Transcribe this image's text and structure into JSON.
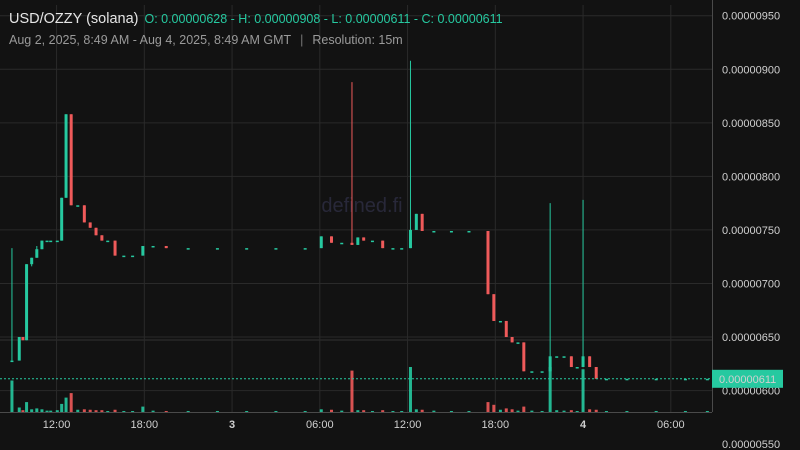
{
  "header": {
    "pair": "USD/OZZY (solana)",
    "ohlc": "O: 0.00000628 - H: 0.00000908 - L: 0.00000611 - C: 0.00000611",
    "range": "Aug 2, 2025, 8:49 AM - Aug 4, 2025, 8:49 AM GMT",
    "separator": "|",
    "resolution": "Resolution: 15m"
  },
  "watermark": "defined.fi",
  "colors": {
    "up": "#26c9a0",
    "down": "#ef5a5a",
    "background": "#121212",
    "grid": "#2a2a2a",
    "last_price_label_bg": "#26c9a0"
  },
  "chart_data": {
    "type": "candlestick",
    "title": "USD/OZZY (solana)",
    "resolution": "15m",
    "ylim": [
      5.8e-06,
      9.6e-06
    ],
    "y_ticks": [
      "0.00000550",
      "0.00000600",
      "0.00000650",
      "0.00000700",
      "0.00000750",
      "0.00000800",
      "0.00000850",
      "0.00000900",
      "0.00000950"
    ],
    "x_ticks": [
      {
        "label": "12:00",
        "hour": 12,
        "bold": false
      },
      {
        "label": "18:00",
        "hour": 18,
        "bold": false
      },
      {
        "label": "3",
        "hour": 24,
        "bold": true
      },
      {
        "label": "06:00",
        "hour": 30,
        "bold": false
      },
      {
        "label": "12:00",
        "hour": 36,
        "bold": false
      },
      {
        "label": "18:00",
        "hour": 42,
        "bold": false
      },
      {
        "label": "4",
        "hour": 48,
        "bold": true
      },
      {
        "label": "06:00",
        "hour": 54,
        "bold": false
      }
    ],
    "xlim_hours": [
      8.817,
      56.817
    ],
    "last_price": "0.00000611",
    "candles": [
      {
        "t": 8.95,
        "o": 6.28e-06,
        "h": 7.33e-06,
        "l": 6.28e-06,
        "c": 6.28e-06,
        "v": 0.7
      },
      {
        "t": 9.45,
        "o": 6.28e-06,
        "h": 6.5e-06,
        "l": 6.28e-06,
        "c": 6.5e-06,
        "v": 0.1
      },
      {
        "t": 9.7,
        "o": 6.5e-06,
        "h": 6.5e-06,
        "l": 6.47e-06,
        "c": 6.47e-06,
        "v": 0.04
      },
      {
        "t": 9.95,
        "o": 6.47e-06,
        "h": 7.18e-06,
        "l": 6.47e-06,
        "c": 7.18e-06,
        "v": 0.22
      },
      {
        "t": 10.3,
        "o": 7.18e-06,
        "h": 7.24e-06,
        "l": 7.16e-06,
        "c": 7.24e-06,
        "v": 0.06
      },
      {
        "t": 10.65,
        "o": 7.24e-06,
        "h": 7.35e-06,
        "l": 7.24e-06,
        "c": 7.32e-06,
        "v": 0.08
      },
      {
        "t": 11.0,
        "o": 7.32e-06,
        "h": 7.4e-06,
        "l": 7.32e-06,
        "c": 7.4e-06,
        "v": 0.06
      },
      {
        "t": 11.35,
        "o": 7.4e-06,
        "h": 7.4e-06,
        "l": 7.4e-06,
        "c": 7.4e-06,
        "v": 0.03
      },
      {
        "t": 11.6,
        "o": 7.4e-06,
        "h": 7.4e-06,
        "l": 7.4e-06,
        "c": 7.4e-06,
        "v": 0.03
      },
      {
        "t": 12.05,
        "o": 7.4e-06,
        "h": 7.4e-06,
        "l": 7.4e-06,
        "c": 7.4e-06,
        "v": 0.04
      },
      {
        "t": 12.35,
        "o": 7.4e-06,
        "h": 7.8e-06,
        "l": 7.4e-06,
        "c": 7.8e-06,
        "v": 0.18
      },
      {
        "t": 12.65,
        "o": 7.8e-06,
        "h": 8.58e-06,
        "l": 7.8e-06,
        "c": 8.58e-06,
        "v": 0.32
      },
      {
        "t": 13.0,
        "o": 8.58e-06,
        "h": 8.58e-06,
        "l": 7.73e-06,
        "c": 7.73e-06,
        "v": 0.42
      },
      {
        "t": 13.45,
        "o": 7.73e-06,
        "h": 7.73e-06,
        "l": 7.73e-06,
        "c": 7.73e-06,
        "v": 0.05
      },
      {
        "t": 13.9,
        "o": 7.73e-06,
        "h": 7.73e-06,
        "l": 7.57e-06,
        "c": 7.57e-06,
        "v": 0.06
      },
      {
        "t": 14.3,
        "o": 7.57e-06,
        "h": 7.57e-06,
        "l": 7.52e-06,
        "c": 7.52e-06,
        "v": 0.05
      },
      {
        "t": 14.7,
        "o": 7.52e-06,
        "h": 7.52e-06,
        "l": 7.45e-06,
        "c": 7.45e-06,
        "v": 0.04
      },
      {
        "t": 15.1,
        "o": 7.45e-06,
        "h": 7.45e-06,
        "l": 7.4e-06,
        "c": 7.4e-06,
        "v": 0.04
      },
      {
        "t": 15.5,
        "o": 7.4e-06,
        "h": 7.4e-06,
        "l": 7.4e-06,
        "c": 7.4e-06,
        "v": 0.02
      },
      {
        "t": 16.0,
        "o": 7.4e-06,
        "h": 7.4e-06,
        "l": 7.26e-06,
        "c": 7.26e-06,
        "v": 0.05
      },
      {
        "t": 16.6,
        "o": 7.26e-06,
        "h": 7.26e-06,
        "l": 7.26e-06,
        "c": 7.26e-06,
        "v": 0.02
      },
      {
        "t": 17.2,
        "o": 7.26e-06,
        "h": 7.26e-06,
        "l": 7.26e-06,
        "c": 7.26e-06,
        "v": 0.02
      },
      {
        "t": 17.9,
        "o": 7.26e-06,
        "h": 7.35e-06,
        "l": 7.26e-06,
        "c": 7.35e-06,
        "v": 0.12
      },
      {
        "t": 18.6,
        "o": 7.35e-06,
        "h": 7.35e-06,
        "l": 7.35e-06,
        "c": 7.35e-06,
        "v": 0.03
      },
      {
        "t": 19.5,
        "o": 7.35e-06,
        "h": 7.35e-06,
        "l": 7.33e-06,
        "c": 7.33e-06,
        "v": 0.02
      },
      {
        "t": 21.0,
        "o": 7.33e-06,
        "h": 7.33e-06,
        "l": 7.33e-06,
        "c": 7.33e-06,
        "v": 0.02
      },
      {
        "t": 23.0,
        "o": 7.33e-06,
        "h": 7.33e-06,
        "l": 7.33e-06,
        "c": 7.33e-06,
        "v": 0.02
      },
      {
        "t": 25.0,
        "o": 7.33e-06,
        "h": 7.33e-06,
        "l": 7.33e-06,
        "c": 7.33e-06,
        "v": 0.02
      },
      {
        "t": 27.0,
        "o": 7.33e-06,
        "h": 7.33e-06,
        "l": 7.33e-06,
        "c": 7.33e-06,
        "v": 0.02
      },
      {
        "t": 29.0,
        "o": 7.33e-06,
        "h": 7.33e-06,
        "l": 7.33e-06,
        "c": 7.33e-06,
        "v": 0.02
      },
      {
        "t": 30.1,
        "o": 7.33e-06,
        "h": 7.44e-06,
        "l": 7.33e-06,
        "c": 7.44e-06,
        "v": 0.06
      },
      {
        "t": 30.8,
        "o": 7.44e-06,
        "h": 7.44e-06,
        "l": 7.38e-06,
        "c": 7.38e-06,
        "v": 0.05
      },
      {
        "t": 31.5,
        "o": 7.38e-06,
        "h": 7.38e-06,
        "l": 7.38e-06,
        "c": 7.38e-06,
        "v": 0.03
      },
      {
        "t": 32.2,
        "o": 7.38e-06,
        "h": 8.88e-06,
        "l": 7.36e-06,
        "c": 7.36e-06,
        "v": 0.92
      },
      {
        "t": 32.6,
        "o": 7.36e-06,
        "h": 7.43e-06,
        "l": 7.36e-06,
        "c": 7.43e-06,
        "v": 0.04
      },
      {
        "t": 33.0,
        "o": 7.43e-06,
        "h": 7.43e-06,
        "l": 7.4e-06,
        "c": 7.4e-06,
        "v": 0.04
      },
      {
        "t": 33.6,
        "o": 7.4e-06,
        "h": 7.4e-06,
        "l": 7.4e-06,
        "c": 7.4e-06,
        "v": 0.02
      },
      {
        "t": 34.3,
        "o": 7.4e-06,
        "h": 7.4e-06,
        "l": 7.33e-06,
        "c": 7.33e-06,
        "v": 0.04
      },
      {
        "t": 35.0,
        "o": 7.33e-06,
        "h": 7.33e-06,
        "l": 7.33e-06,
        "c": 7.33e-06,
        "v": 0.02
      },
      {
        "t": 35.6,
        "o": 7.33e-06,
        "h": 7.33e-06,
        "l": 7.33e-06,
        "c": 7.33e-06,
        "v": 0.02
      },
      {
        "t": 36.2,
        "o": 7.33e-06,
        "h": 9.08e-06,
        "l": 7.33e-06,
        "c": 7.5e-06,
        "v": 1.0
      },
      {
        "t": 36.6,
        "o": 7.5e-06,
        "h": 7.65e-06,
        "l": 7.5e-06,
        "c": 7.65e-06,
        "v": 0.06
      },
      {
        "t": 37.0,
        "o": 7.65e-06,
        "h": 7.65e-06,
        "l": 7.49e-06,
        "c": 7.49e-06,
        "v": 0.05
      },
      {
        "t": 37.8,
        "o": 7.49e-06,
        "h": 7.49e-06,
        "l": 7.49e-06,
        "c": 7.49e-06,
        "v": 0.03
      },
      {
        "t": 39.0,
        "o": 7.49e-06,
        "h": 7.49e-06,
        "l": 7.49e-06,
        "c": 7.49e-06,
        "v": 0.02
      },
      {
        "t": 40.2,
        "o": 7.49e-06,
        "h": 7.49e-06,
        "l": 7.49e-06,
        "c": 7.49e-06,
        "v": 0.02
      },
      {
        "t": 41.5,
        "o": 7.49e-06,
        "h": 7.49e-06,
        "l": 6.9e-06,
        "c": 6.9e-06,
        "v": 0.22
      },
      {
        "t": 41.9,
        "o": 6.9e-06,
        "h": 6.9e-06,
        "l": 6.65e-06,
        "c": 6.65e-06,
        "v": 0.16
      },
      {
        "t": 42.35,
        "o": 6.65e-06,
        "h": 6.65e-06,
        "l": 6.65e-06,
        "c": 6.65e-06,
        "v": 0.05
      },
      {
        "t": 42.75,
        "o": 6.65e-06,
        "h": 6.65e-06,
        "l": 6.5e-06,
        "c": 6.5e-06,
        "v": 0.08
      },
      {
        "t": 43.15,
        "o": 6.5e-06,
        "h": 6.5e-06,
        "l": 6.45e-06,
        "c": 6.45e-06,
        "v": 0.06
      },
      {
        "t": 43.55,
        "o": 6.45e-06,
        "h": 6.45e-06,
        "l": 6.45e-06,
        "c": 6.45e-06,
        "v": 0.03
      },
      {
        "t": 43.95,
        "o": 6.45e-06,
        "h": 6.45e-06,
        "l": 6.18e-06,
        "c": 6.18e-06,
        "v": 0.12
      },
      {
        "t": 44.5,
        "o": 6.18e-06,
        "h": 6.18e-06,
        "l": 6.18e-06,
        "c": 6.18e-06,
        "v": 0.03
      },
      {
        "t": 45.2,
        "o": 6.18e-06,
        "h": 6.18e-06,
        "l": 6.18e-06,
        "c": 6.18e-06,
        "v": 0.02
      },
      {
        "t": 45.75,
        "o": 6.18e-06,
        "h": 7.75e-06,
        "l": 6.18e-06,
        "c": 6.32e-06,
        "v": 1.0
      },
      {
        "t": 46.2,
        "o": 6.32e-06,
        "h": 6.32e-06,
        "l": 6.32e-06,
        "c": 6.32e-06,
        "v": 0.04
      },
      {
        "t": 46.7,
        "o": 6.32e-06,
        "h": 6.32e-06,
        "l": 6.32e-06,
        "c": 6.32e-06,
        "v": 0.03
      },
      {
        "t": 47.2,
        "o": 6.32e-06,
        "h": 6.32e-06,
        "l": 6.22e-06,
        "c": 6.22e-06,
        "v": 0.04
      },
      {
        "t": 47.6,
        "o": 6.22e-06,
        "h": 6.22e-06,
        "l": 6.22e-06,
        "c": 6.22e-06,
        "v": 0.02
      },
      {
        "t": 48.0,
        "o": 6.22e-06,
        "h": 7.78e-06,
        "l": 6.22e-06,
        "c": 6.32e-06,
        "v": 0.95
      },
      {
        "t": 48.45,
        "o": 6.32e-06,
        "h": 6.32e-06,
        "l": 6.22e-06,
        "c": 6.22e-06,
        "v": 0.06
      },
      {
        "t": 48.9,
        "o": 6.22e-06,
        "h": 6.22e-06,
        "l": 6.11e-06,
        "c": 6.11e-06,
        "v": 0.05
      },
      {
        "t": 49.6,
        "o": 6.11e-06,
        "h": 6.11e-06,
        "l": 6.11e-06,
        "c": 6.11e-06,
        "v": 0.02
      },
      {
        "t": 51.0,
        "o": 6.11e-06,
        "h": 6.11e-06,
        "l": 6.11e-06,
        "c": 6.11e-06,
        "v": 0.02
      },
      {
        "t": 53.0,
        "o": 6.11e-06,
        "h": 6.11e-06,
        "l": 6.11e-06,
        "c": 6.11e-06,
        "v": 0.02
      },
      {
        "t": 55.0,
        "o": 6.11e-06,
        "h": 6.11e-06,
        "l": 6.11e-06,
        "c": 6.11e-06,
        "v": 0.02
      },
      {
        "t": 56.5,
        "o": 6.11e-06,
        "h": 6.11e-06,
        "l": 6.11e-06,
        "c": 6.11e-06,
        "v": 0.02
      }
    ]
  }
}
